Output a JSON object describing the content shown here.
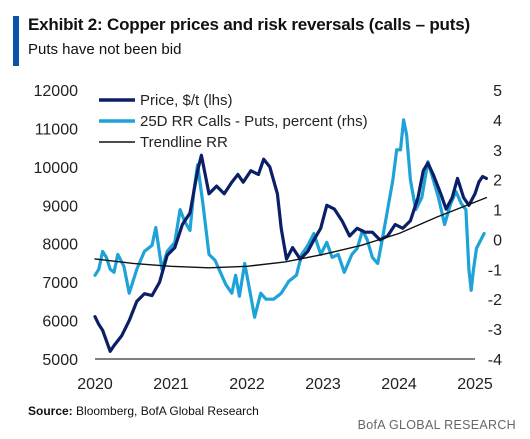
{
  "header": {
    "title": "Exhibit 2: Copper prices and risk reversals (calls – puts)",
    "subtitle": "Puts have not been bid"
  },
  "footer": {
    "source_label": "Source:",
    "source_text": " Bloomberg, BofA Global Research",
    "brand": "BofA GLOBAL RESEARCH"
  },
  "colors": {
    "accent": "#0a53a8",
    "price": "#0b1f66",
    "rr": "#1ea3d8",
    "trend": "#111111"
  },
  "chart_data": {
    "type": "line",
    "grid": false,
    "legend_position": "top-left",
    "x_ticks": [
      "2020",
      "2021",
      "2022",
      "2023",
      "2024",
      "2025"
    ],
    "y_left": {
      "ticks": [
        "12000",
        "11000",
        "10000",
        "9000",
        "8000",
        "7000",
        "6000",
        "5000"
      ],
      "lim": [
        5000,
        12000
      ]
    },
    "y_right": {
      "ticks": [
        "5",
        "4",
        "3",
        "2",
        "1",
        "0",
        "-1",
        "-2",
        "-3",
        "-4"
      ],
      "lim": [
        -4,
        5
      ]
    },
    "legend": [
      "Price, $/t (lhs)",
      "25D RR Calls - Puts, percent (rhs)",
      "Trendline RR"
    ],
    "series": [
      {
        "name": "Price, $/t (lhs)",
        "axis": "left",
        "points": [
          [
            2020.0,
            6100
          ],
          [
            2020.05,
            5900
          ],
          [
            2020.1,
            5750
          ],
          [
            2020.2,
            5200
          ],
          [
            2020.25,
            5350
          ],
          [
            2020.35,
            5600
          ],
          [
            2020.45,
            6000
          ],
          [
            2020.55,
            6500
          ],
          [
            2020.65,
            6700
          ],
          [
            2020.75,
            6650
          ],
          [
            2020.85,
            7000
          ],
          [
            2020.95,
            7700
          ],
          [
            2021.05,
            7900
          ],
          [
            2021.15,
            8500
          ],
          [
            2021.25,
            8800
          ],
          [
            2021.35,
            9900
          ],
          [
            2021.4,
            10300
          ],
          [
            2021.45,
            9800
          ],
          [
            2021.5,
            9300
          ],
          [
            2021.6,
            9500
          ],
          [
            2021.7,
            9300
          ],
          [
            2021.8,
            9600
          ],
          [
            2021.88,
            9800
          ],
          [
            2021.95,
            9600
          ],
          [
            2022.05,
            9900
          ],
          [
            2022.15,
            9800
          ],
          [
            2022.22,
            10200
          ],
          [
            2022.3,
            10000
          ],
          [
            2022.4,
            9300
          ],
          [
            2022.45,
            8400
          ],
          [
            2022.52,
            7600
          ],
          [
            2022.6,
            7900
          ],
          [
            2022.7,
            7600
          ],
          [
            2022.8,
            7800
          ],
          [
            2022.88,
            8100
          ],
          [
            2022.97,
            8400
          ],
          [
            2023.05,
            9000
          ],
          [
            2023.15,
            8900
          ],
          [
            2023.25,
            8600
          ],
          [
            2023.35,
            8200
          ],
          [
            2023.45,
            8400
          ],
          [
            2023.55,
            8300
          ],
          [
            2023.65,
            8300
          ],
          [
            2023.75,
            8100
          ],
          [
            2023.85,
            8200
          ],
          [
            2023.95,
            8500
          ],
          [
            2024.05,
            8400
          ],
          [
            2024.15,
            8600
          ],
          [
            2024.25,
            9200
          ],
          [
            2024.32,
            9900
          ],
          [
            2024.38,
            10100
          ],
          [
            2024.45,
            9800
          ],
          [
            2024.55,
            9300
          ],
          [
            2024.62,
            8900
          ],
          [
            2024.7,
            9200
          ],
          [
            2024.77,
            9700
          ],
          [
            2024.85,
            9200
          ],
          [
            2024.92,
            9000
          ],
          [
            2025.0,
            9300
          ],
          [
            2025.05,
            9600
          ],
          [
            2025.1,
            9750
          ],
          [
            2025.15,
            9700
          ]
        ]
      },
      {
        "name": "25D RR Calls - Puts, percent (rhs)",
        "axis": "right",
        "points": [
          [
            2020.0,
            -1.2
          ],
          [
            2020.05,
            -1.0
          ],
          [
            2020.1,
            -0.4
          ],
          [
            2020.15,
            -0.6
          ],
          [
            2020.2,
            -1.0
          ],
          [
            2020.25,
            -1.1
          ],
          [
            2020.3,
            -0.5
          ],
          [
            2020.38,
            -0.9
          ],
          [
            2020.45,
            -1.8
          ],
          [
            2020.55,
            -1.0
          ],
          [
            2020.65,
            -0.4
          ],
          [
            2020.75,
            -0.2
          ],
          [
            2020.8,
            0.4
          ],
          [
            2020.88,
            -1.0
          ],
          [
            2020.95,
            -0.4
          ],
          [
            2021.05,
            -0.1
          ],
          [
            2021.12,
            1.0
          ],
          [
            2021.18,
            0.6
          ],
          [
            2021.25,
            0.3
          ],
          [
            2021.3,
            1.6
          ],
          [
            2021.35,
            2.5
          ],
          [
            2021.42,
            1.2
          ],
          [
            2021.5,
            -0.5
          ],
          [
            2021.58,
            -0.7
          ],
          [
            2021.65,
            -1.1
          ],
          [
            2021.72,
            -1.5
          ],
          [
            2021.8,
            -1.8
          ],
          [
            2021.85,
            -1.2
          ],
          [
            2021.9,
            -1.9
          ],
          [
            2021.97,
            -0.8
          ],
          [
            2022.05,
            -1.9
          ],
          [
            2022.1,
            -2.6
          ],
          [
            2022.18,
            -1.8
          ],
          [
            2022.25,
            -2.0
          ],
          [
            2022.35,
            -2.0
          ],
          [
            2022.45,
            -1.8
          ],
          [
            2022.55,
            -1.4
          ],
          [
            2022.65,
            -1.2
          ],
          [
            2022.72,
            -0.5
          ],
          [
            2022.8,
            -0.2
          ],
          [
            2022.88,
            0.2
          ],
          [
            2022.97,
            -0.5
          ],
          [
            2023.05,
            -0.1
          ],
          [
            2023.12,
            -0.6
          ],
          [
            2023.2,
            -0.5
          ],
          [
            2023.28,
            -1.1
          ],
          [
            2023.38,
            -0.5
          ],
          [
            2023.45,
            -0.3
          ],
          [
            2023.52,
            0.3
          ],
          [
            2023.58,
            0.0
          ],
          [
            2023.65,
            -0.6
          ],
          [
            2023.72,
            -0.8
          ],
          [
            2023.78,
            0.0
          ],
          [
            2023.85,
            1.0
          ],
          [
            2023.92,
            2.0
          ],
          [
            2023.97,
            3.0
          ],
          [
            2024.02,
            3.0
          ],
          [
            2024.06,
            4.0
          ],
          [
            2024.1,
            3.5
          ],
          [
            2024.15,
            2.0
          ],
          [
            2024.22,
            1.0
          ],
          [
            2024.3,
            1.4
          ],
          [
            2024.38,
            2.6
          ],
          [
            2024.45,
            2.0
          ],
          [
            2024.52,
            1.4
          ],
          [
            2024.6,
            0.5
          ],
          [
            2024.68,
            1.2
          ],
          [
            2024.75,
            1.6
          ],
          [
            2024.82,
            1.2
          ],
          [
            2024.88,
            1.0
          ],
          [
            2024.92,
            -1.0
          ],
          [
            2024.95,
            -1.7
          ],
          [
            2024.98,
            -1.0
          ],
          [
            2025.02,
            -0.3
          ],
          [
            2025.08,
            0.0
          ],
          [
            2025.12,
            0.2
          ]
        ]
      },
      {
        "name": "Trendline RR",
        "axis": "right",
        "points": [
          [
            2020.0,
            -0.65
          ],
          [
            2020.5,
            -0.8
          ],
          [
            2021.0,
            -0.9
          ],
          [
            2021.5,
            -0.95
          ],
          [
            2022.0,
            -0.9
          ],
          [
            2022.5,
            -0.75
          ],
          [
            2023.0,
            -0.5
          ],
          [
            2023.5,
            -0.2
          ],
          [
            2024.0,
            0.2
          ],
          [
            2024.5,
            0.75
          ],
          [
            2025.0,
            1.25
          ],
          [
            2025.15,
            1.4
          ]
        ]
      }
    ]
  }
}
